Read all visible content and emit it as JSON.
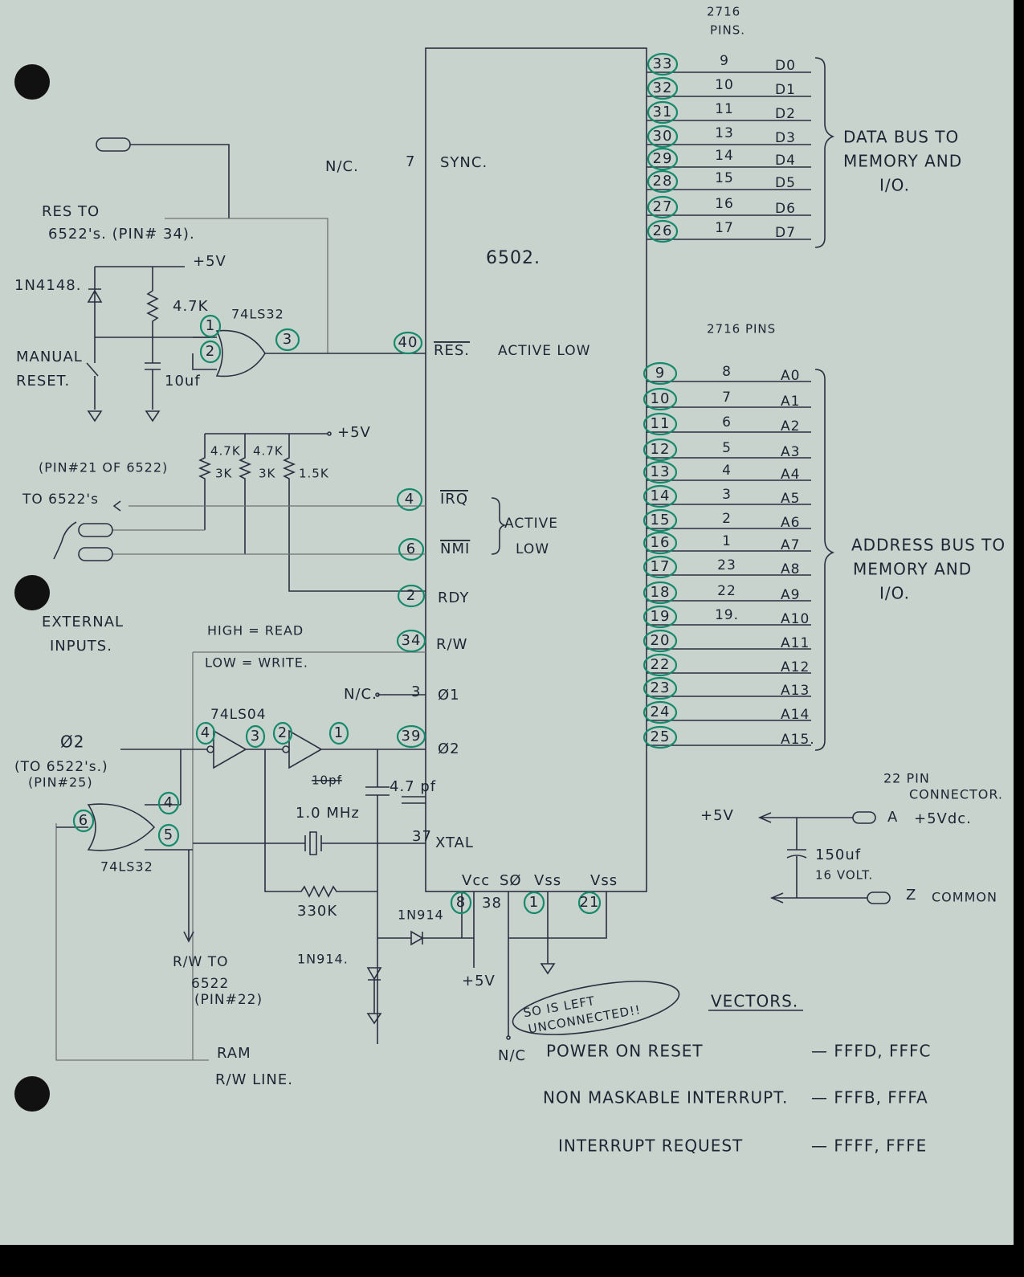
{
  "chip": {
    "name": "6502.",
    "sync_nc": "N/C.",
    "sync_pin": "7",
    "sync": "SYNC.",
    "res_pin": "40",
    "res": "RES.",
    "res_note": "ACTIVE LOW",
    "irq_pin": "4",
    "irq": "IRQ",
    "nmi_pin": "6",
    "nmi": "NMI",
    "int_note": [
      "ACTIVE",
      "LOW"
    ],
    "rdy_pin": "2",
    "rdy": "RDY",
    "rw_pin": "34",
    "rw": "R/W",
    "phi1_nc": "N/C.",
    "phi1_pin": "3",
    "phi1": "Ø1",
    "phi2_pin": "39",
    "phi2": "Ø2",
    "xtal_pin": "37",
    "xtal": "XTAL",
    "vcc": "Vcc",
    "so": "SØ",
    "vss1": "Vss",
    "vss2": "Vss",
    "vcc_pin": "8",
    "so_pin": "38",
    "vss1_pin": "1",
    "vss2_pin": "21"
  },
  "data_bus": {
    "header": [
      "2716",
      "PINS."
    ],
    "rows": [
      {
        "pin": "33",
        "rom_pin": "9",
        "signal": "D0"
      },
      {
        "pin": "32",
        "rom_pin": "10",
        "signal": "D1"
      },
      {
        "pin": "31",
        "rom_pin": "11",
        "signal": "D2"
      },
      {
        "pin": "30",
        "rom_pin": "13",
        "signal": "D3"
      },
      {
        "pin": "29",
        "rom_pin": "14",
        "signal": "D4"
      },
      {
        "pin": "28",
        "rom_pin": "15",
        "signal": "D5"
      },
      {
        "pin": "27",
        "rom_pin": "16",
        "signal": "D6"
      },
      {
        "pin": "26",
        "rom_pin": "17",
        "signal": "D7"
      }
    ],
    "label": [
      "DATA BUS TO",
      "MEMORY AND",
      "I/O."
    ]
  },
  "address_bus": {
    "header": "2716 PINS",
    "rows": [
      {
        "pin": "9",
        "rom_pin": "8",
        "signal": "A0"
      },
      {
        "pin": "10",
        "rom_pin": "7",
        "signal": "A1"
      },
      {
        "pin": "11",
        "rom_pin": "6",
        "signal": "A2"
      },
      {
        "pin": "12",
        "rom_pin": "5",
        "signal": "A3"
      },
      {
        "pin": "13",
        "rom_pin": "4",
        "signal": "A4"
      },
      {
        "pin": "14",
        "rom_pin": "3",
        "signal": "A5"
      },
      {
        "pin": "15",
        "rom_pin": "2",
        "signal": "A6"
      },
      {
        "pin": "16",
        "rom_pin": "1",
        "signal": "A7"
      },
      {
        "pin": "17",
        "rom_pin": "23",
        "signal": "A8"
      },
      {
        "pin": "18",
        "rom_pin": "22",
        "signal": "A9"
      },
      {
        "pin": "19",
        "rom_pin": "19.",
        "signal": "A10"
      },
      {
        "pin": "20",
        "signal": "A11"
      },
      {
        "pin": "22",
        "signal": "A12"
      },
      {
        "pin": "23",
        "signal": "A13"
      },
      {
        "pin": "24",
        "signal": "A14"
      },
      {
        "pin": "25",
        "signal": "A15."
      }
    ],
    "label": [
      "ADDRESS BUS TO",
      "MEMORY AND",
      "I/O."
    ]
  },
  "reset": {
    "label": [
      "RES TO",
      "6522's. (PIN# 34)."
    ],
    "vcc": "+5V",
    "diode": "1N4148.",
    "resistor": "4.7K",
    "gate": "74LS32",
    "pin_a": "1",
    "pin_b": "2",
    "pin_out": "3",
    "switch": [
      "MANUAL",
      "RESET."
    ],
    "cap": "10uf"
  },
  "interrupts": {
    "vcc": "+5V",
    "resistors": [
      "4.7K",
      "4.7K",
      "3K",
      "3K",
      "1.5K"
    ],
    "pin_note": "(PIN#21 OF 6522)",
    "to": "TO 6522's",
    "external": [
      "EXTERNAL",
      "INPUTS."
    ]
  },
  "rw": {
    "high": "HIGH = READ",
    "low": "LOW = WRITE.",
    "to": [
      "R/W TO",
      "6522",
      "(PIN#22)"
    ],
    "ram": [
      "RAM",
      "R/W LINE."
    ]
  },
  "clock": {
    "inverter": "74LS04",
    "inverter_pins": [
      "4",
      "3",
      "2",
      "1"
    ],
    "phi2": "Ø2",
    "to": [
      "(TO 6522's.)",
      "(PIN#25)"
    ],
    "cap_old": "10pf",
    "cap": "4.7 pf",
    "crystal": "1.0 MHz",
    "resistor": "330K",
    "gate": "74LS32",
    "gate_pins": [
      "4",
      "5",
      "6"
    ],
    "diode1": "1N914",
    "diode2": "1N914.",
    "vcc": "+5V"
  },
  "so_note": [
    "SO IS LEFT",
    "UNCONNECTED!!"
  ],
  "nc": "N/C",
  "power": {
    "title": [
      "22 PIN",
      "CONNECTOR."
    ],
    "vcc": "+5V",
    "pin_a": "A",
    "pin_a_label": "+5Vdc.",
    "cap": [
      "150uf",
      "16 VOLT."
    ],
    "pin_z": "Z",
    "pin_z_label": "COMMON"
  },
  "vectors": {
    "title": "VECTORS.",
    "rows": [
      {
        "name": "POWER ON RESET",
        "address": "— FFFD, FFFC"
      },
      {
        "name": "NON MASKABLE INTERRUPT.",
        "address": "— FFFB, FFFA"
      },
      {
        "name": "INTERRUPT REQUEST",
        "address": "— FFFF, FFFE"
      }
    ]
  }
}
